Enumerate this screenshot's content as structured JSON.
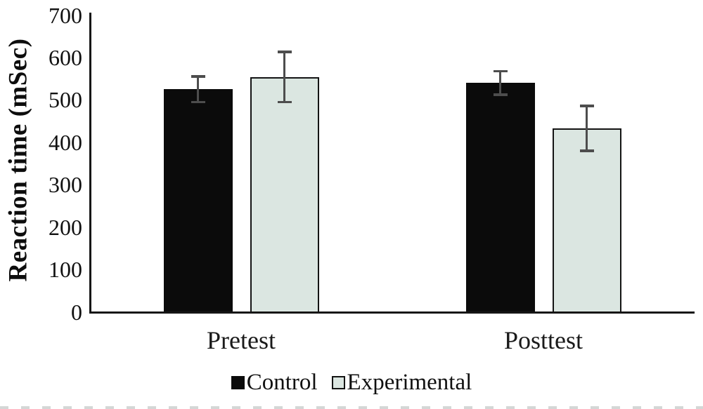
{
  "chart_data": {
    "type": "bar",
    "title": "",
    "ylabel": "Reaction time (mSec)",
    "xlabel": "",
    "categories": [
      "Pretest",
      "Posttest"
    ],
    "series": [
      {
        "name": "Control",
        "fill": "#0b0b0b",
        "border": "#0b0b0b",
        "values": [
          525,
          540
        ],
        "errors": [
          30,
          28
        ]
      },
      {
        "name": "Experimental",
        "fill": "#dbe6e1",
        "border": "#141414",
        "values": [
          554,
          433
        ],
        "errors": [
          59,
          53
        ]
      }
    ],
    "ylim": [
      0,
      700
    ],
    "y_ticks": [
      0,
      100,
      200,
      300,
      400,
      500,
      600,
      700
    ],
    "grid": false,
    "legend_position": "bottom-center",
    "error_bar_color": "#4d4d4d",
    "axis_color": "#161616"
  }
}
